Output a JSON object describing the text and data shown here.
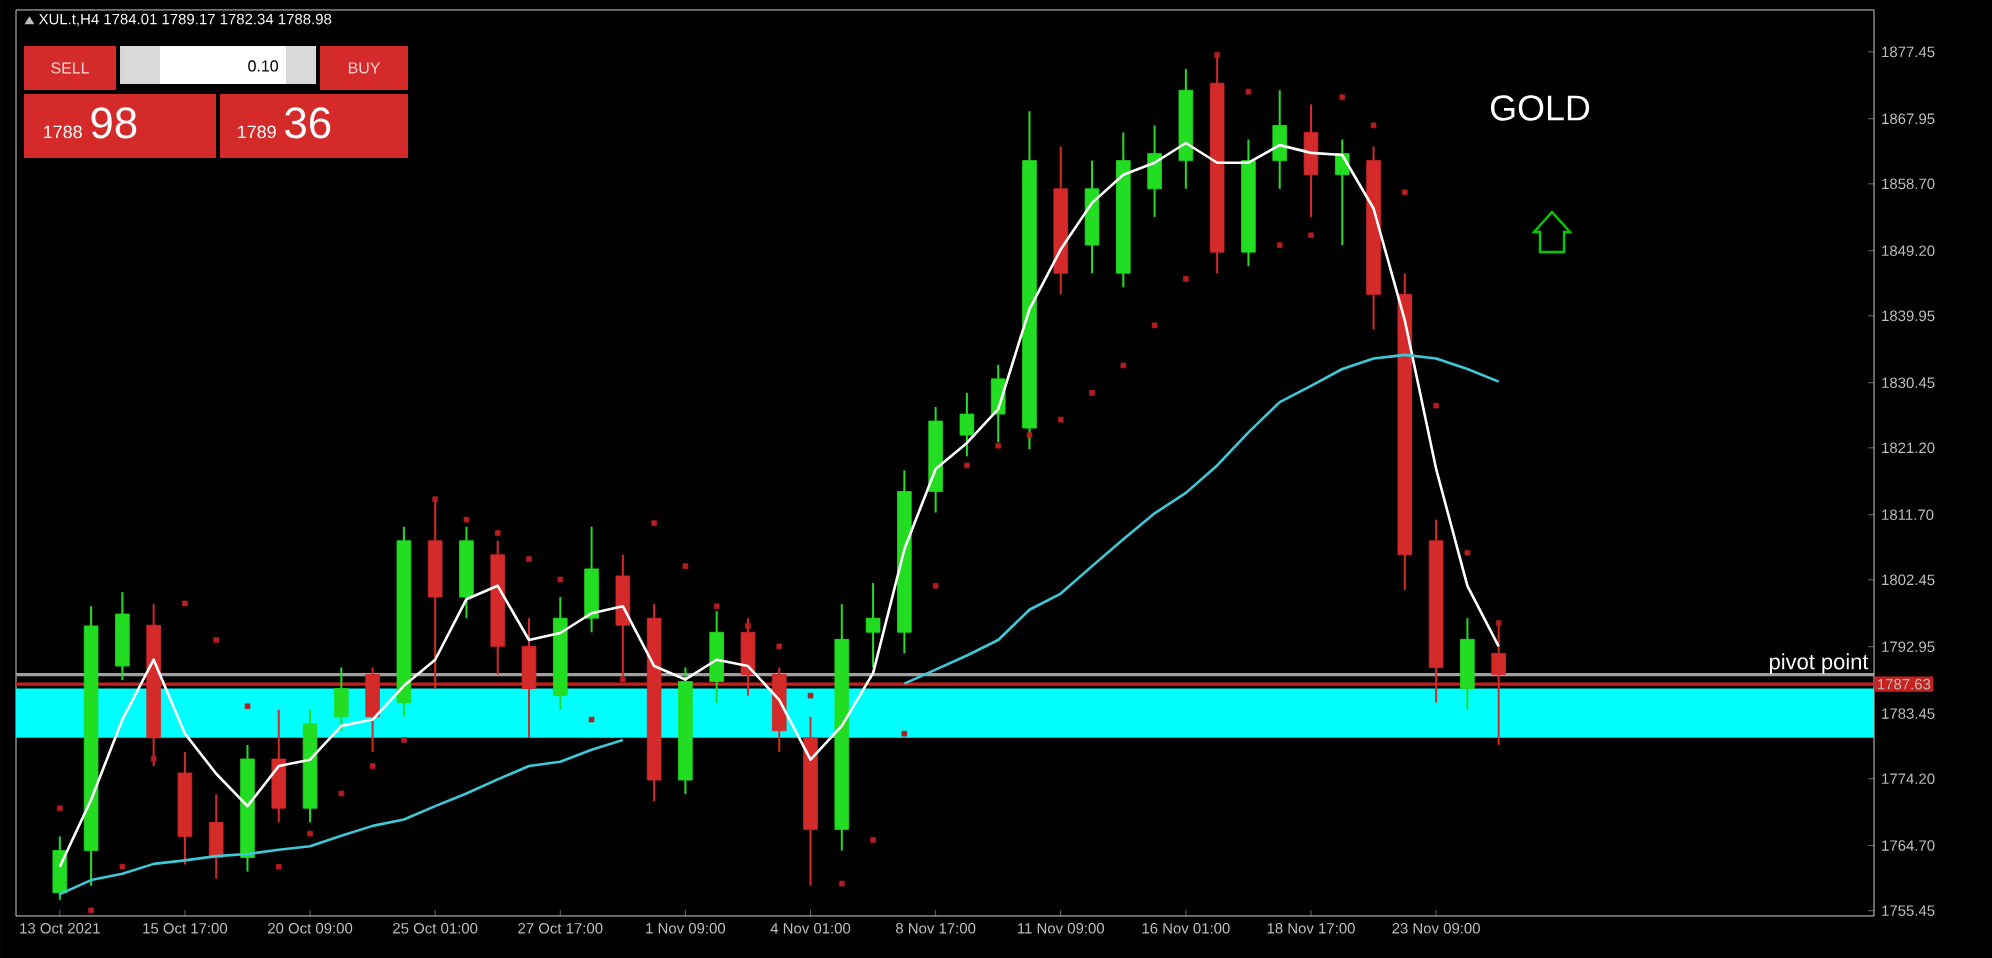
{
  "chart_data": {
    "type": "candlestick",
    "title": "XUL.t,H4  1784.01 1789.17 1782.34 1788.98",
    "categories": [
      "13 Oct 2021",
      null,
      null,
      null,
      "15 Oct 17:00",
      null,
      null,
      null,
      "20 Oct 09:00",
      null,
      null,
      null,
      "25 Oct 01:00",
      null,
      null,
      null,
      "27 Oct 17:00",
      null,
      null,
      null,
      "1 Nov 09:00",
      null,
      null,
      null,
      "4 Nov 01:00",
      null,
      null,
      null,
      "8 Nov 17:00",
      null,
      null,
      null,
      "11 Nov 09:00",
      null,
      null,
      null,
      "16 Nov 01:00",
      null,
      null,
      null,
      "18 Nov 17:00",
      null,
      null,
      null,
      "23 Nov 09:00",
      null,
      null
    ],
    "ohlc": [
      [
        1758,
        1766,
        1757,
        1764
      ],
      [
        1764,
        1798.7,
        1759,
        1795.9
      ],
      [
        1790.2,
        1800.7,
        1788.2,
        1797.6
      ],
      [
        1796,
        1799,
        1776,
        1780
      ],
      [
        1775,
        1778,
        1762,
        1766
      ],
      [
        1768,
        1772,
        1760,
        1763
      ],
      [
        1763,
        1779,
        1761,
        1777
      ],
      [
        1777,
        1784,
        1768,
        1770
      ],
      [
        1770,
        1784,
        1768,
        1782
      ],
      [
        1783,
        1790,
        1781,
        1787
      ],
      [
        1789,
        1790,
        1778,
        1783
      ],
      [
        1785,
        1810,
        1783,
        1808
      ],
      [
        1808,
        1814,
        1787,
        1800
      ],
      [
        1800,
        1810,
        1797,
        1808
      ],
      [
        1806,
        1808,
        1789,
        1793
      ],
      [
        1793,
        1797,
        1780,
        1787
      ],
      [
        1786,
        1800,
        1784,
        1797
      ],
      [
        1797,
        1810,
        1795,
        1804
      ],
      [
        1803,
        1806,
        1788,
        1796
      ],
      [
        1797,
        1799,
        1771,
        1774
      ],
      [
        1774,
        1790,
        1772,
        1788
      ],
      [
        1788,
        1798,
        1785,
        1795
      ],
      [
        1795,
        1797,
        1786,
        1789
      ],
      [
        1789,
        1790,
        1778,
        1781
      ],
      [
        1780,
        1783,
        1759,
        1767
      ],
      [
        1767,
        1799,
        1764,
        1794
      ],
      [
        1795,
        1802,
        1790,
        1797
      ],
      [
        1795,
        1818,
        1792,
        1815
      ],
      [
        1815,
        1827,
        1812,
        1825
      ],
      [
        1823,
        1829,
        1820,
        1826
      ],
      [
        1826,
        1833,
        1822,
        1831
      ],
      [
        1824,
        1869,
        1821,
        1862
      ],
      [
        1858,
        1864,
        1843,
        1846
      ],
      [
        1850,
        1862,
        1846,
        1858
      ],
      [
        1846,
        1866,
        1844,
        1862
      ],
      [
        1858,
        1867,
        1854,
        1863
      ],
      [
        1862,
        1875,
        1858,
        1872
      ],
      [
        1873,
        1877,
        1846,
        1849
      ],
      [
        1849,
        1865,
        1847,
        1862
      ],
      [
        1862,
        1872,
        1858,
        1867
      ],
      [
        1866,
        1870,
        1854,
        1860
      ],
      [
        1860,
        1865,
        1850,
        1863
      ],
      [
        1862,
        1864,
        1838,
        1843
      ],
      [
        1843,
        1846,
        1801,
        1806
      ],
      [
        1808,
        1811,
        1785,
        1790
      ],
      [
        1787,
        1797,
        1784,
        1794
      ],
      [
        1792,
        1796,
        1779,
        1789
      ]
    ],
    "colors": [
      "#22dd22",
      "#22dd22",
      "#22dd22",
      "#d42a2a",
      "#d42a2a",
      "#d42a2a",
      "#22dd22",
      "#d42a2a",
      "#22dd22",
      "#22dd22",
      "#d42a2a",
      "#22dd22",
      "#d42a2a",
      "#22dd22",
      "#d42a2a",
      "#d42a2a",
      "#22dd22",
      "#22dd22",
      "#d42a2a",
      "#d42a2a",
      "#22dd22",
      "#22dd22",
      "#d42a2a",
      "#d42a2a",
      "#d42a2a",
      "#22dd22",
      "#22dd22",
      "#22dd22",
      "#22dd22",
      "#22dd22",
      "#22dd22",
      "#22dd22",
      "#d42a2a",
      "#22dd22",
      "#22dd22",
      "#22dd22",
      "#22dd22",
      "#d42a2a",
      "#22dd22",
      "#22dd22",
      "#d42a2a",
      "#22dd22",
      "#d42a2a",
      "#d42a2a",
      "#d42a2a",
      "#22dd22",
      "#d42a2a"
    ],
    "series": [
      {
        "type": "line",
        "color": "#ffffff",
        "values": [
          1761.7,
          1771.2,
          1782.6,
          1791.1,
          1780.6,
          1774.9,
          1770.3,
          1776,
          1776.9,
          1781.7,
          1782.6,
          1787.4,
          1791.1,
          1799.7,
          1801.6,
          1793.9,
          1794.9,
          1797.7,
          1798.7,
          1790.2,
          1788.3,
          1791.1,
          1790.2,
          1785.4,
          1776.9,
          1781.7,
          1789.2,
          1806.8,
          1818.2,
          1821.9,
          1826.7,
          1840.9,
          1849.4,
          1856,
          1860,
          1861.7,
          1864.5,
          1861.7,
          1861.7,
          1864.2,
          1863.1,
          1862.8,
          1855.2,
          1839.3,
          1818.2,
          1801.6,
          1793
        ]
      },
      {
        "type": "line",
        "color": "#3fc8d8",
        "values": [
          1757.8,
          1759.8,
          1760.7,
          1762.1,
          1762.6,
          1763.2,
          1763.5,
          1764.1,
          1764.6,
          1766.1,
          1767.5,
          1768.4,
          1770.3,
          1772.1,
          1774.1,
          1776,
          1776.6,
          1778.3,
          1779.7,
          null,
          null,
          null,
          null,
          null,
          null,
          null,
          null,
          1787.7,
          1789.7,
          1791.7,
          1793.9,
          1798.2,
          1800.5,
          1804.4,
          1808.2,
          1811.9,
          1814.8,
          1818.7,
          1823.4,
          1827.7,
          1830,
          1832.4,
          1833.9,
          1834.4,
          1833.9,
          1832.4,
          1830.6
        ]
      },
      {
        "type": "scatter",
        "color": "#b81c1c",
        "marker": "square",
        "values": [
          1770,
          1755.5,
          1761.7,
          1777,
          1799.1,
          1793.9,
          1784.5,
          1761.7,
          1766.4,
          1772.1,
          1776,
          1779.7,
          1813.9,
          1811,
          1809.1,
          1805.4,
          1802.5,
          1782.6,
          1788.3,
          1810.5,
          1804.4,
          1798.7,
          1795.9,
          1793,
          1786,
          1759.3,
          1765.5,
          1780.6,
          1801.6,
          1818.7,
          1821.5,
          1823,
          1825.2,
          1829,
          1832.9,
          1838.6,
          1845.2,
          1877,
          1871.8,
          1850,
          1851.4,
          1871,
          1867,
          1857.5,
          1827.2,
          1806.3,
          1796.3
        ]
      }
    ],
    "ylim": [
      1754.7,
      1883.4
    ],
    "yticks": [
      1755.45,
      {
        "value": 1764.7,
        "label": "1764.70"
      },
      {
        "value": 1774.2,
        "label": "1774.20"
      },
      1783.45,
      1792.95,
      1802.45,
      {
        "value": 1811.7,
        "label": "1811.70"
      },
      {
        "value": 1821.2,
        "label": "1821.20"
      },
      1830.45,
      1839.95,
      {
        "value": 1849.2,
        "label": "1849.20"
      },
      {
        "value": 1858.7,
        "label": "1858.70"
      },
      1867.95,
      1877.45
    ],
    "bands": [
      {
        "axis": "y",
        "from": 1780,
        "to": 1787,
        "color": "#00ffff"
      }
    ],
    "ref_lines": [
      {
        "axis": "y",
        "value": 1787.63,
        "label": "1787.63",
        "color": "#c8201c"
      },
      {
        "axis": "y",
        "value": 1788.98,
        "color": "#a0a0a0"
      }
    ],
    "annotations": [
      "GOLD",
      {
        "text": "pivot point",
        "y": 1787.63
      },
      "SELL",
      "0.10",
      "BUY",
      "1788",
      "98",
      "1789",
      "36"
    ]
  }
}
